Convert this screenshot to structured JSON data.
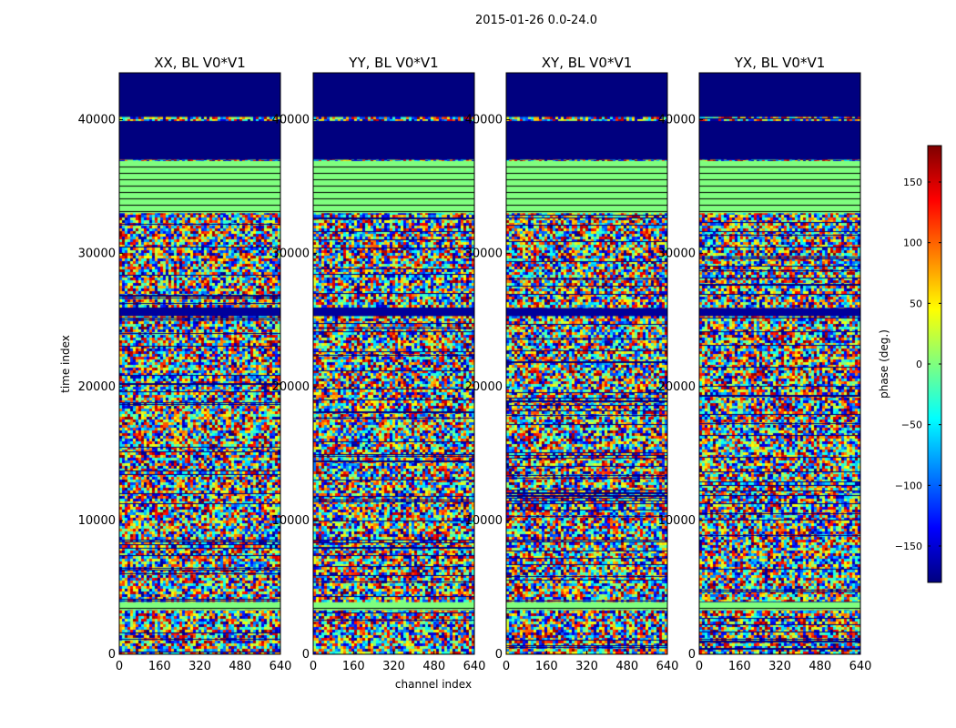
{
  "chart_data": {
    "type": "heatmap",
    "suptitle": "2015-01-26 0.0-24.0",
    "xlabel": "channel index",
    "ylabel": "time index",
    "x_ticks": [
      "0",
      "160",
      "320",
      "480",
      "640"
    ],
    "y_ticks": [
      "0",
      "10000",
      "20000",
      "30000",
      "40000"
    ],
    "xlim": [
      0,
      640
    ],
    "ylim": [
      0,
      43500
    ],
    "panels": [
      {
        "title": "XX, BL V0*V1",
        "polarization": "XX"
      },
      {
        "title": "YY, BL V0*V1",
        "polarization": "YY"
      },
      {
        "title": "XY, BL V0*V1",
        "polarization": "XY"
      },
      {
        "title": "YX, BL V0*V1",
        "polarization": "YX"
      }
    ],
    "colorbar": {
      "label": "phase (deg.)",
      "range": [
        -180,
        180
      ],
      "ticks": [
        "150",
        "100",
        "50",
        "0",
        "−50",
        "−100",
        "−150"
      ],
      "colormap": "jet",
      "colors": [
        "#00007f",
        "#0000ff",
        "#007fff",
        "#00ffff",
        "#7fff7f",
        "#ffff00",
        "#ff7f00",
        "#ff0000",
        "#7f0000"
      ]
    },
    "bands": [
      {
        "from": 40200,
        "to": 43500,
        "phase": -180
      },
      {
        "from": 37000,
        "to": 39900,
        "phase": -180
      },
      {
        "from": 33000,
        "to": 36900,
        "phase": 0
      },
      {
        "from": 25300,
        "to": 25900,
        "phase": -170
      },
      {
        "from": 3300,
        "to": 3900,
        "phase": 0
      }
    ]
  }
}
